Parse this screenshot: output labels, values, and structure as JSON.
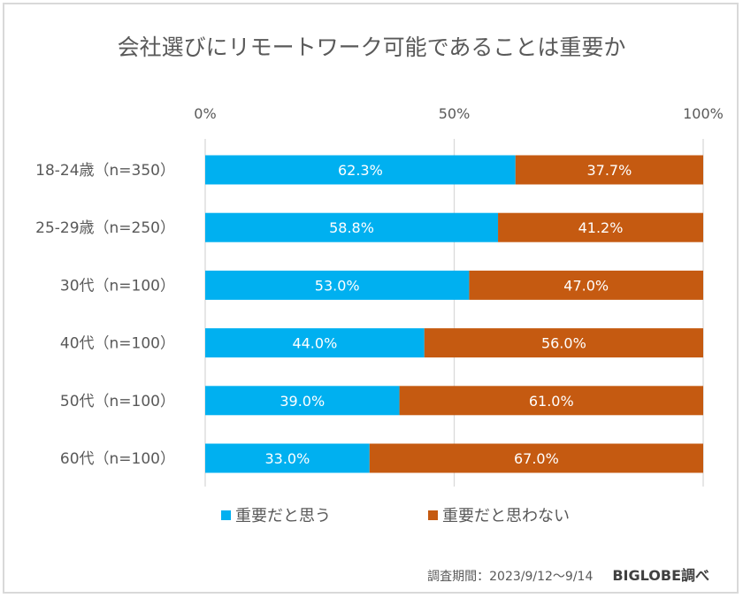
{
  "chart_data": {
    "type": "bar",
    "orientation": "horizontal",
    "stacked": "percent",
    "title": "会社選びにリモートワーク可能であることは重要か",
    "categories": [
      "18-24歳（n=350）",
      "25-29歳（n=250）",
      "30代（n=100）",
      "40代（n=100）",
      "50代（n=100）",
      "60代（n=100）"
    ],
    "series": [
      {
        "name": "重要だと思う",
        "color": "#00b0f0",
        "values": [
          62.3,
          58.8,
          53.0,
          44.0,
          39.0,
          33.0
        ],
        "labels": [
          "62.3%",
          "58.8%",
          "53.0%",
          "44.0%",
          "39.0%",
          "33.0%"
        ]
      },
      {
        "name": "重要だと思わない",
        "color": "#c55a11",
        "values": [
          37.7,
          41.2,
          47.0,
          56.0,
          61.0,
          67.0
        ],
        "labels": [
          "37.7%",
          "41.2%",
          "47.0%",
          "56.0%",
          "61.0%",
          "67.0%"
        ]
      }
    ],
    "xaxis": {
      "ticks": [
        "0%",
        "50%",
        "100%"
      ],
      "tick_values": [
        0,
        50,
        100
      ],
      "position": "top"
    },
    "xlim": [
      0,
      100
    ],
    "xlabel": "",
    "ylabel": "",
    "grid": true,
    "legend": "bottom"
  },
  "footer": {
    "period": "調査期間：2023/9/12～9/14",
    "source": "BIGLOBE調べ"
  }
}
